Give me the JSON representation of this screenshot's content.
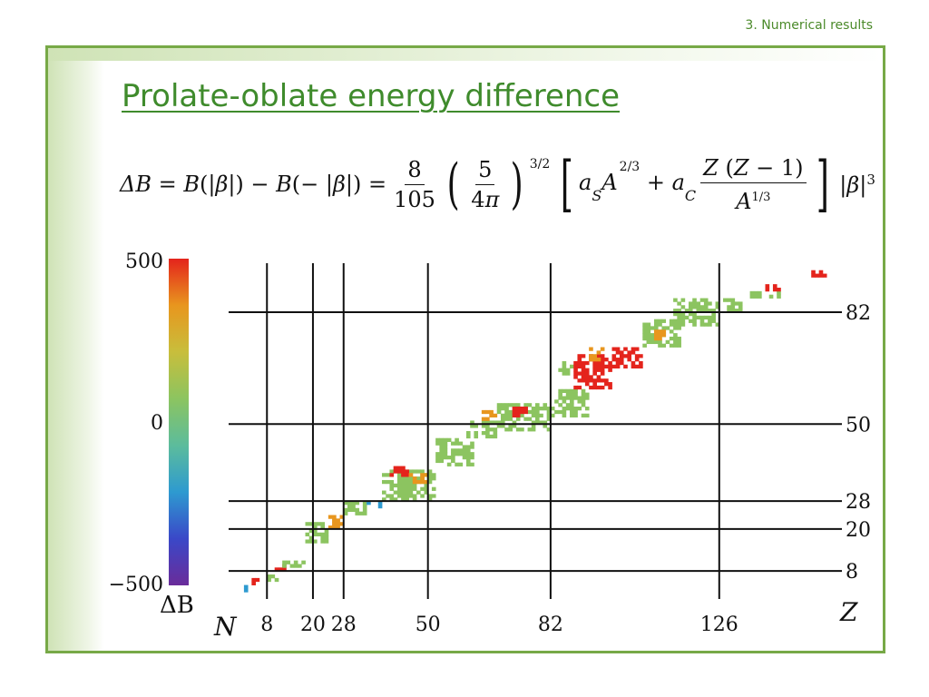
{
  "header": {
    "section": "3. Numerical results"
  },
  "slide": {
    "title": "Prolate-oblate energy difference"
  },
  "formula": {
    "lhs": "ΔB = B(|β|) − B(−|β|) =",
    "coef_num": "8",
    "coef_den": "105",
    "inner_num": "5",
    "inner_den": "4π",
    "outer_exp": "3/2",
    "surface_term": "aS A^(2/3)",
    "coulomb_num": "Z (Z − 1)",
    "coulomb_den": "A^(1/3)",
    "tail": "|β|3"
  },
  "chart_data": {
    "type": "heatmap",
    "xlabel": "N",
    "ylabel": "Z",
    "xlim": [
      -2,
      158
    ],
    "ylim": [
      0,
      96
    ],
    "magic_numbers_N": [
      8,
      20,
      28,
      50,
      82,
      126
    ],
    "magic_numbers_Z": [
      8,
      20,
      28,
      50,
      82
    ],
    "x_tick_labels": [
      "8",
      "20",
      "28",
      "50",
      "82",
      "126"
    ],
    "y_tick_labels": [
      "8",
      "20",
      "28",
      "50",
      "82"
    ],
    "colorbar": {
      "label": "ΔB",
      "min": -500,
      "max": 500,
      "ticks": [
        "500",
        "0",
        "−500"
      ],
      "stops": [
        "#6a2c9a",
        "#3a48c8",
        "#2e9ad0",
        "#5cbc9c",
        "#8cc460",
        "#c8be3c",
        "#e8961e",
        "#e4241c"
      ]
    },
    "palette": {
      "green": "#8cc460",
      "red": "#e4241c",
      "orange": "#e8961e",
      "yellow": "#d8c23a",
      "blue": "#2e7ad0",
      "purple": "#6a2c9a"
    },
    "regions": [
      {
        "n0": 2,
        "n1": 4,
        "z0": 2,
        "z1": 4,
        "value": -250
      },
      {
        "n0": 4,
        "n1": 6,
        "z0": 4,
        "z1": 6,
        "value": 450
      },
      {
        "n0": 8,
        "n1": 11,
        "z0": 5,
        "z1": 7,
        "value": 0
      },
      {
        "n0": 10,
        "n1": 14,
        "z0": 8,
        "z1": 10,
        "value": 480
      },
      {
        "n0": 12,
        "n1": 18,
        "z0": 9,
        "z1": 11,
        "value": 0
      },
      {
        "n0": 18,
        "n1": 24,
        "z0": 16,
        "z1": 22,
        "value": 0
      },
      {
        "n0": 24,
        "n1": 28,
        "z0": 20,
        "z1": 24,
        "value": 300
      },
      {
        "n0": 28,
        "n1": 34,
        "z0": 24,
        "z1": 28,
        "value": 0
      },
      {
        "n0": 34,
        "n1": 38,
        "z0": 26,
        "z1": 28,
        "value": -150
      },
      {
        "n0": 38,
        "n1": 52,
        "z0": 28,
        "z1": 37,
        "value": 0
      },
      {
        "n0": 40,
        "n1": 45,
        "z0": 35,
        "z1": 38,
        "value": 480
      },
      {
        "n0": 45,
        "n1": 50,
        "z0": 33,
        "z1": 36,
        "value": 300
      },
      {
        "n0": 52,
        "n1": 62,
        "z0": 38,
        "z1": 46,
        "value": 0
      },
      {
        "n0": 60,
        "n1": 68,
        "z0": 46,
        "z1": 51,
        "value": 0
      },
      {
        "n0": 64,
        "n1": 68,
        "z0": 51,
        "z1": 54,
        "value": 300
      },
      {
        "n0": 68,
        "n1": 82,
        "z0": 48,
        "z1": 56,
        "value": 0
      },
      {
        "n0": 72,
        "n1": 76,
        "z0": 52,
        "z1": 55,
        "value": 450
      },
      {
        "n0": 82,
        "n1": 92,
        "z0": 52,
        "z1": 60,
        "value": 0
      },
      {
        "n0": 84,
        "n1": 88,
        "z0": 64,
        "z1": 68,
        "value": 0
      },
      {
        "n0": 88,
        "n1": 98,
        "z0": 60,
        "z1": 70,
        "value": 480
      },
      {
        "n0": 92,
        "n1": 96,
        "z0": 68,
        "z1": 72,
        "value": 300
      },
      {
        "n0": 98,
        "n1": 106,
        "z0": 66,
        "z1": 72,
        "value": 480
      },
      {
        "n0": 106,
        "n1": 116,
        "z0": 72,
        "z1": 80,
        "value": 0
      },
      {
        "n0": 108,
        "n1": 112,
        "z0": 74,
        "z1": 77,
        "value": 300
      },
      {
        "n0": 114,
        "n1": 126,
        "z0": 78,
        "z1": 86,
        "value": 0
      },
      {
        "n0": 126,
        "n1": 132,
        "z0": 82,
        "z1": 86,
        "value": 0
      },
      {
        "n0": 134,
        "n1": 142,
        "z0": 86,
        "z1": 88,
        "value": 0
      },
      {
        "n0": 138,
        "n1": 142,
        "z0": 88,
        "z1": 90,
        "value": 480
      },
      {
        "n0": 150,
        "n1": 154,
        "z0": 92,
        "z1": 94,
        "value": 450
      }
    ]
  }
}
